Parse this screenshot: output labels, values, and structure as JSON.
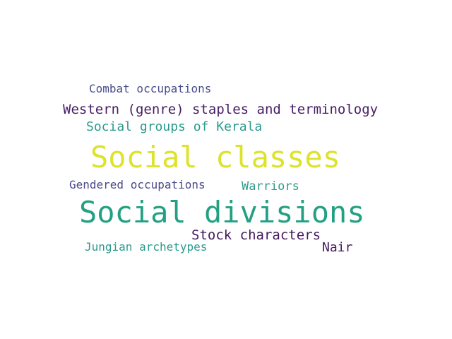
{
  "words": [
    {
      "text": "Social classes",
      "color": "#dde32a"
    },
    {
      "text": "Social divisions",
      "color": "#23a083"
    },
    {
      "text": "Western (genre) staples and terminology",
      "color": "#471d63"
    },
    {
      "text": "Combat occupations",
      "color": "#4a4d8b"
    },
    {
      "text": "Social groups of Kerala",
      "color": "#2a9a8c"
    },
    {
      "text": "Gendered occupations",
      "color": "#4b4889"
    },
    {
      "text": "Warriors",
      "color": "#2e9b8b"
    },
    {
      "text": "Stock characters",
      "color": "#451a5e"
    },
    {
      "text": "Jungian archetypes",
      "color": "#2d9a8b"
    },
    {
      "text": "Nair",
      "color": "#46195c"
    }
  ]
}
